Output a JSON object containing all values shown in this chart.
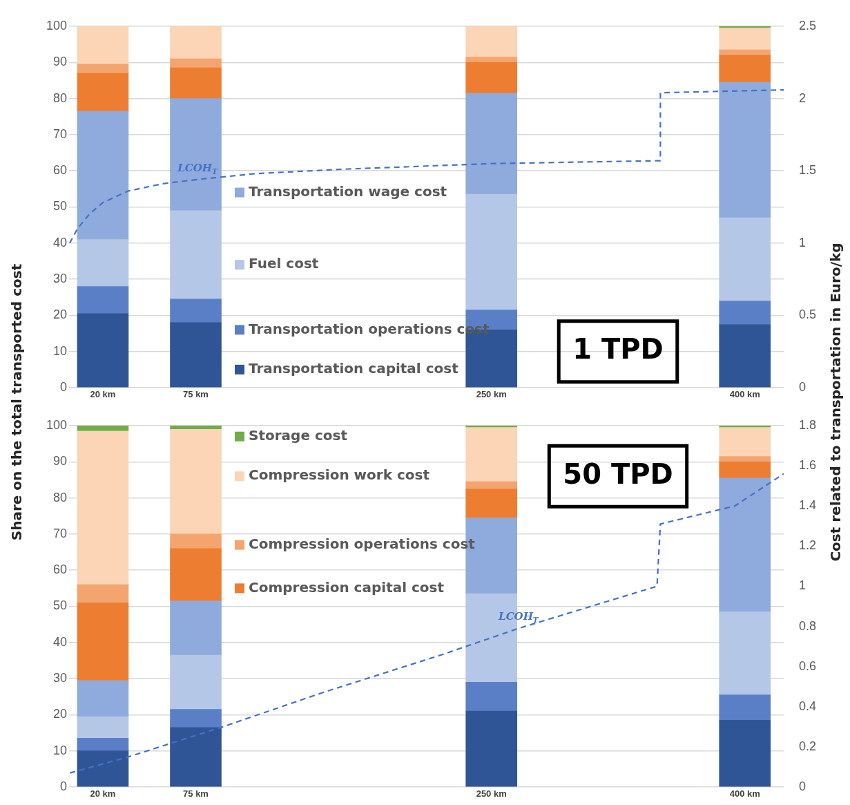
{
  "chart_data": [
    {
      "type": "bar",
      "stacked": true,
      "ylabel": "Share on the total transported cost",
      "y2label": "Cost related to transportation in Euro/kg",
      "x": [
        20,
        75,
        250,
        400
      ],
      "xlim": [
        0,
        423
      ],
      "xticks": [
        {
          "value": 20,
          "label": "20 km"
        },
        {
          "value": 75,
          "label": "75 km"
        },
        {
          "value": 250,
          "label": "250 km"
        },
        {
          "value": 400,
          "label": "400 km"
        }
      ],
      "ylim": [
        0,
        100
      ],
      "yticks": [
        0,
        10,
        20,
        30,
        40,
        50,
        60,
        70,
        80,
        90,
        100
      ],
      "y2lim": [
        0,
        2.5
      ],
      "y2ticks": [
        0,
        0.5,
        1,
        1.5,
        2,
        2.5
      ],
      "grid": "y",
      "legend": "center",
      "annotations": [
        "1 TPD"
      ],
      "series": [
        {
          "name": "Transportation capital cost",
          "color": "#2f5597",
          "values": [
            20.5,
            18,
            16,
            17.5
          ]
        },
        {
          "name": "Transportation operations cost",
          "color": "#5b7fc7",
          "values": [
            7.5,
            6.5,
            5.5,
            6.5
          ]
        },
        {
          "name": "Fuel cost",
          "color": "#b4c7e7",
          "values": [
            13,
            24.5,
            32,
            23
          ]
        },
        {
          "name": "Transportation wage cost",
          "color": "#8faadc",
          "values": [
            35.5,
            31,
            28,
            37.5
          ]
        },
        {
          "color": "#ed7d31",
          "values": [
            10.5,
            8.5,
            8.5,
            7.5
          ]
        },
        {
          "color": "#f4a46e",
          "values": [
            2.5,
            2.5,
            1.5,
            1.5
          ]
        },
        {
          "color": "#fbd5b5",
          "values": [
            10.5,
            9,
            8.5,
            6
          ]
        },
        {
          "color": "#70ad47",
          "values": [
            0,
            0,
            0,
            0.5
          ]
        },
        {
          "name": "LCOH$_{T}$",
          "type": "line",
          "axis": "y2",
          "color": "#4472c4",
          "line_style": "dashed",
          "marker": "none",
          "x": [
            0.4,
            5,
            12,
            20,
            35,
            55,
            76,
            110,
            160,
            250,
            350,
            350,
            423
          ],
          "values": [
            1.0,
            1.1,
            1.2,
            1.28,
            1.36,
            1.41,
            1.44,
            1.48,
            1.51,
            1.55,
            1.57,
            2.04,
            2.06
          ]
        }
      ]
    },
    {
      "type": "bar",
      "stacked": true,
      "x": [
        20,
        75,
        250,
        400
      ],
      "xlim": [
        0,
        423
      ],
      "xticks": [
        {
          "value": 20,
          "label": "20 km"
        },
        {
          "value": 75,
          "label": "75 km"
        },
        {
          "value": 250,
          "label": "250 km"
        },
        {
          "value": 400,
          "label": "400 km"
        }
      ],
      "ylim": [
        0,
        100
      ],
      "yticks": [
        0,
        10,
        20,
        30,
        40,
        50,
        60,
        70,
        80,
        90,
        100
      ],
      "y2lim": [
        0,
        1.8
      ],
      "y2ticks": [
        0,
        0.2,
        0.4,
        0.6,
        0.8,
        1,
        1.2,
        1.4,
        1.6,
        1.8
      ],
      "grid": "y",
      "legend": "center",
      "annotations": [
        "50 TPD"
      ],
      "series": [
        {
          "color": "#2f5597",
          "values": [
            10,
            16.5,
            21,
            18.5
          ]
        },
        {
          "color": "#5b7fc7",
          "values": [
            3.5,
            5,
            8,
            7
          ]
        },
        {
          "color": "#b4c7e7",
          "values": [
            6,
            15,
            24.5,
            23
          ]
        },
        {
          "color": "#8faadc",
          "values": [
            10,
            15,
            21,
            37
          ]
        },
        {
          "name": "Compression capital cost",
          "color": "#ed7d31",
          "values": [
            21.5,
            14.5,
            8,
            4.5
          ]
        },
        {
          "name": "Compression operations cost",
          "color": "#f4a46e",
          "values": [
            5,
            4,
            2,
            1.5
          ]
        },
        {
          "name": "Compression work cost",
          "color": "#fbd5b5",
          "values": [
            42.5,
            29,
            15,
            8
          ]
        },
        {
          "name": "Storage cost",
          "color": "#70ad47",
          "values": [
            1.5,
            1,
            0.5,
            0.5
          ]
        },
        {
          "name": "LCOH$_{T}$",
          "type": "line",
          "axis": "y2",
          "color": "#4472c4",
          "line_style": "dashed",
          "marker": "none",
          "x": [
            0.5,
            35,
            91,
            150,
            221,
            266,
            348,
            350,
            394,
            423
          ],
          "values": [
            0.07,
            0.15,
            0.3,
            0.47,
            0.66,
            0.79,
            1.0,
            1.31,
            1.4,
            1.56
          ]
        }
      ]
    }
  ]
}
